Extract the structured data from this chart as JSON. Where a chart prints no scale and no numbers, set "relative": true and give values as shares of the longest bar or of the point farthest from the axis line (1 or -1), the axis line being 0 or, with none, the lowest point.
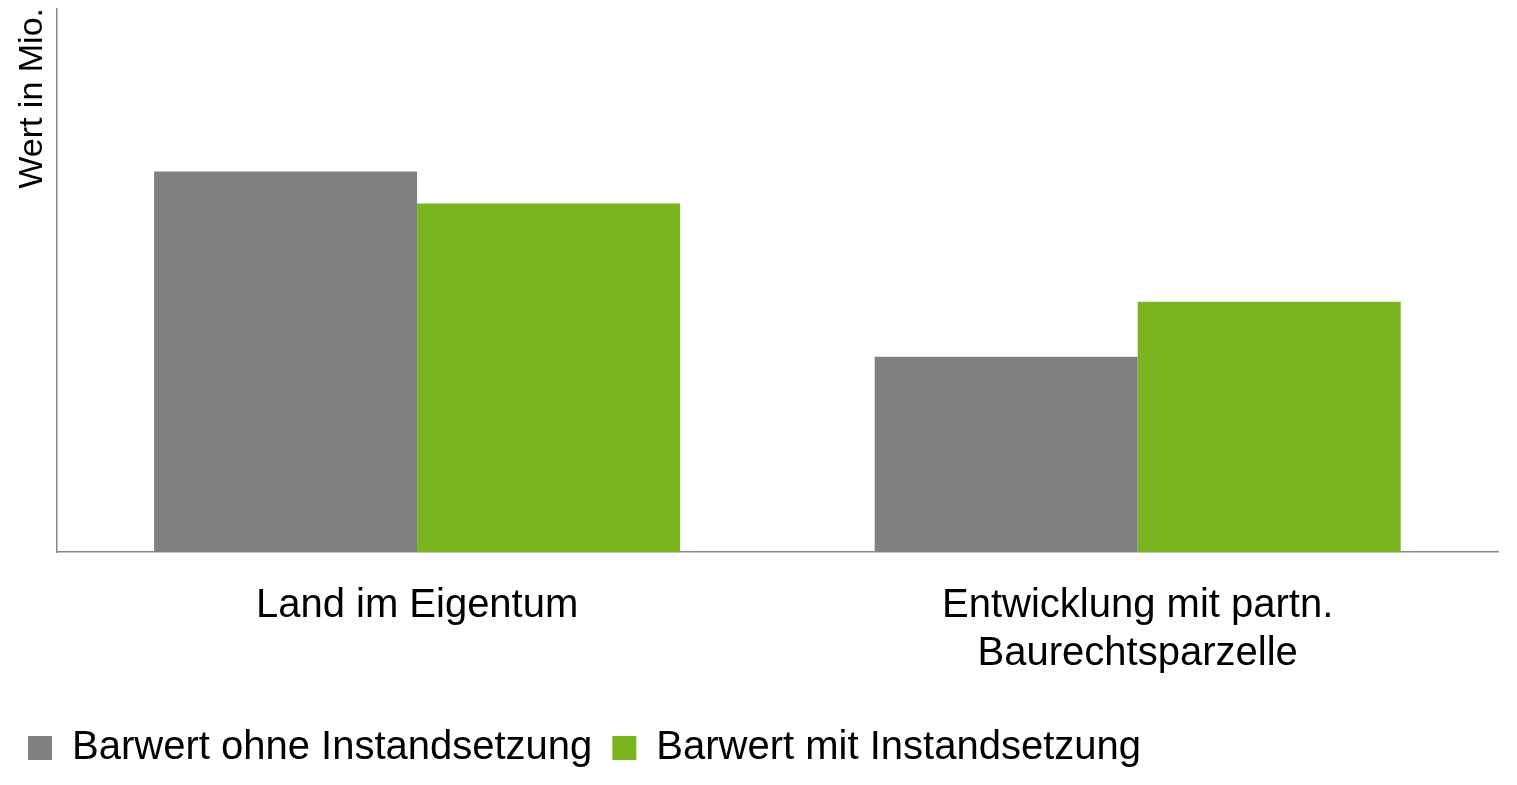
{
  "chart_data": {
    "type": "bar",
    "relative": true,
    "ylabel": "Wert in Mio.",
    "categories": [
      "Land im Eigentum",
      "Entwicklung mit partn. Baurechtsparzelle"
    ],
    "series": [
      {
        "name": "Barwert ohne Instandsetzung",
        "color": "#808080",
        "values": [
          1,
          0.513
        ]
      },
      {
        "name": "Barwert mit Instandsetzung",
        "color": "#7ab41e",
        "values": [
          0.916,
          0.658
        ]
      }
    ],
    "grid": false,
    "legend": "bottom"
  }
}
